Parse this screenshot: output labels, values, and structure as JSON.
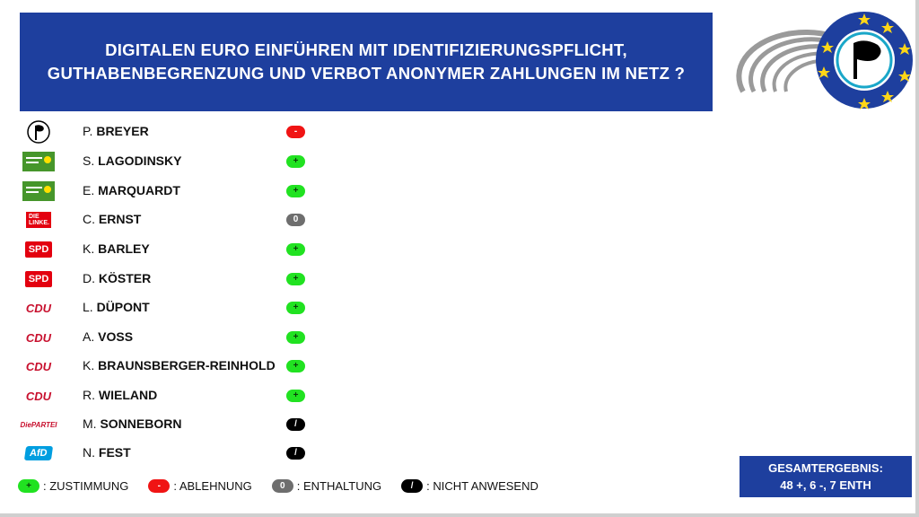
{
  "title": {
    "line1": "DIGITALEN EURO EINFÜHREN MIT IDENTIFIZIERUNGSPFLICHT,",
    "line2": "GUTHABENBEGRENZUNG UND VERBOT ANONYMER ZAHLUNGEN IM NETZ ?"
  },
  "colors": {
    "brand_blue": "#1e3f9e",
    "yes": "#21e221",
    "no": "#f01414",
    "abstain": "#6e6e6e",
    "absent": "#000000",
    "spd_red": "#e3000f",
    "cdu_red": "#c8102e",
    "green_logo": "#46962b",
    "eu_yellow": "#ffd617"
  },
  "party_logos": {
    "piraten": "pirate-flag-icon",
    "gruene": "gruene-sunflower-logo",
    "linke_text": "DIE LINKE.",
    "spd_text": "SPD",
    "cdu_text": "CDU",
    "partei_text": "DiePARTEI",
    "afd_text": "AfD"
  },
  "members": [
    {
      "first": "P.",
      "last": "BREYER",
      "party": "piraten",
      "vote": "-"
    },
    {
      "first": "S.",
      "last": "LAGODINSKY",
      "party": "gruene",
      "vote": "+"
    },
    {
      "first": "E.",
      "last": "MARQUARDT",
      "party": "gruene",
      "vote": "+"
    },
    {
      "first": "C.",
      "last": "ERNST",
      "party": "linke",
      "vote": "0"
    },
    {
      "first": "K.",
      "last": "BARLEY",
      "party": "spd",
      "vote": "+"
    },
    {
      "first": "D.",
      "last": "KÖSTER",
      "party": "spd",
      "vote": "+"
    },
    {
      "first": "L.",
      "last": "DÜPONT",
      "party": "cdu",
      "vote": "+"
    },
    {
      "first": "A.",
      "last": "VOSS",
      "party": "cdu",
      "vote": "+"
    },
    {
      "first": "K.",
      "last": "BRAUNSBERGER-REINHOLD",
      "party": "cdu",
      "vote": "+"
    },
    {
      "first": "R.",
      "last": "WIELAND",
      "party": "cdu",
      "vote": "+"
    },
    {
      "first": "M.",
      "last": "SONNEBORN",
      "party": "partei",
      "vote": "/"
    },
    {
      "first": "N.",
      "last": "FEST",
      "party": "afd",
      "vote": "/"
    }
  ],
  "legend": {
    "yes_symbol": "+",
    "yes_label": ": ZUSTIMMUNG",
    "no_symbol": "-",
    "no_label": ": ABLEHNUNG",
    "abstain_symbol": "0",
    "abstain_label": ": ENTHALTUNG",
    "absent_symbol": "/",
    "absent_label": ": NICHT ANWESEND"
  },
  "result": {
    "label": "GESAMTERGEBNIS:",
    "value": "48 +, 6 -, 7 ENTH"
  }
}
